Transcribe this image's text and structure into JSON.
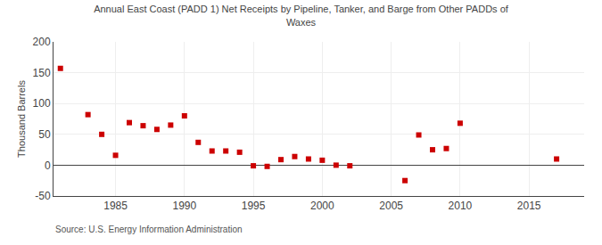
{
  "chart_data": {
    "type": "scatter",
    "title": "Annual East Coast (PADD 1) Net Receipts by Pipeline, Tanker, and Barge from Other PADDs of\nWaxes",
    "ylabel": "Thousand Barrels",
    "annotations": [
      "Source: U.S. Energy Information Administration"
    ],
    "x": [
      1981,
      1983,
      1984,
      1985,
      1986,
      1987,
      1988,
      1989,
      1990,
      1991,
      1992,
      1993,
      1994,
      1995,
      1996,
      1997,
      1998,
      1999,
      2000,
      2001,
      2002,
      2006,
      2007,
      2008,
      2009,
      2010,
      2017
    ],
    "values": [
      157,
      82,
      50,
      16,
      69,
      64,
      58,
      65,
      80,
      37,
      23,
      23,
      21,
      -1,
      -2,
      9,
      14,
      10,
      8,
      0,
      -1,
      -25,
      49,
      25,
      27,
      68,
      10
    ],
    "color": "#cc0000",
    "marker": "square",
    "xlim": [
      1980.5,
      2019
    ],
    "xticks": [
      1985,
      1990,
      1995,
      2000,
      2005,
      2010,
      2015
    ],
    "ylim": [
      -50,
      200
    ],
    "yticks": [
      -50,
      0,
      50,
      100,
      150,
      200
    ],
    "grid": true
  }
}
